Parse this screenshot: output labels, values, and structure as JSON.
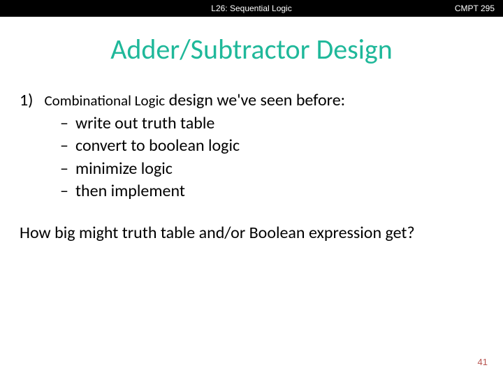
{
  "header": {
    "lecture": "L26: Sequential Logic",
    "course": "CMPT 295"
  },
  "title": {
    "text": "Adder/Subtractor Design",
    "color": "#1fb89a"
  },
  "mainItem": {
    "number": "1)",
    "prefix": "Combinational Logic",
    "rest": " design we've seen before:",
    "subItems": [
      "write out truth table",
      "convert to boolean logic",
      "minimize logic",
      "then implement"
    ]
  },
  "question": "How big might truth table and/or Boolean expression get?",
  "pageNumber": "41",
  "colors": {
    "titleColor": "#1fb89a",
    "headerBg": "#000000",
    "headerText": "#ffffff",
    "bodyText": "#000000",
    "pageNum": "#b85450"
  }
}
